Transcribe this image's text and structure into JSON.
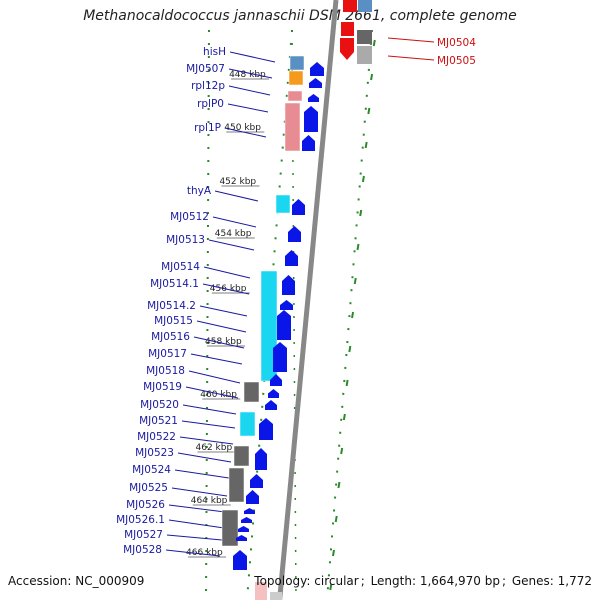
{
  "title": "Methanocaldococcus jannaschii DSM 2661, complete genome",
  "footer": {
    "accession_label": "Accession:",
    "accession": "NC_000909",
    "topology_label": "Topology:",
    "topology": "circular",
    "length_label": "Length:",
    "length": "1,664,970 bp",
    "genes_label": "Genes:",
    "genes": "1,772"
  },
  "colors": {
    "gene_arrow": "#0a16e8",
    "label_left": "#1a1aa0",
    "label_right": "#cc1111",
    "axis": "#888888",
    "tick_green": "#2a8a2a",
    "cyan": "#1ad6f0",
    "orange": "#f59a1c",
    "pink": "#e88c94",
    "steel": "#5a8fc4",
    "gray": "#666666",
    "red": "#e81010"
  },
  "ruler_ticks": [
    {
      "label": "448 kbp"
    },
    {
      "label": "450 kbp"
    },
    {
      "label": "452 kbp"
    },
    {
      "label": "454 kbp"
    },
    {
      "label": "456 kbp"
    },
    {
      "label": "458 kbp"
    },
    {
      "label": "460 kbp"
    },
    {
      "label": "462 kbp"
    },
    {
      "label": "464 kbp"
    },
    {
      "label": "466 kbp"
    }
  ],
  "genes_left": [
    {
      "label": "hisH",
      "color": "steel"
    },
    {
      "label": "MJ0507",
      "color": "orange"
    },
    {
      "label": "rpl12p",
      "color": "pink"
    },
    {
      "label": "rplP0",
      "color": "pink"
    },
    {
      "label": "rpl1P",
      "color": "pink"
    },
    {
      "label": "thyA",
      "color": "cyan"
    },
    {
      "label": "MJ0512",
      "color": "none"
    },
    {
      "label": "MJ0513",
      "color": "none"
    },
    {
      "label": "MJ0514",
      "color": "cyan"
    },
    {
      "label": "MJ0514.1",
      "color": "cyan"
    },
    {
      "label": "MJ0514.2",
      "color": "cyan"
    },
    {
      "label": "MJ0515",
      "color": "cyan"
    },
    {
      "label": "MJ0516",
      "color": "cyan"
    },
    {
      "label": "MJ0517",
      "color": "cyan"
    },
    {
      "label": "MJ0518",
      "color": "gray"
    },
    {
      "label": "MJ0519",
      "color": "gray"
    },
    {
      "label": "MJ0520",
      "color": "none"
    },
    {
      "label": "MJ0521",
      "color": "cyan"
    },
    {
      "label": "MJ0522",
      "color": "cyan"
    },
    {
      "label": "MJ0523",
      "color": "gray"
    },
    {
      "label": "MJ0524",
      "color": "gray"
    },
    {
      "label": "MJ0525",
      "color": "gray"
    },
    {
      "label": "MJ0526",
      "color": "gray"
    },
    {
      "label": "MJ0526.1",
      "color": "gray"
    },
    {
      "label": "MJ0527",
      "color": "gray"
    },
    {
      "label": "MJ0528",
      "color": "gray"
    }
  ],
  "genes_right": [
    {
      "label": "MJ0504",
      "color": "red"
    },
    {
      "label": "MJ0505",
      "color": "gray"
    }
  ]
}
